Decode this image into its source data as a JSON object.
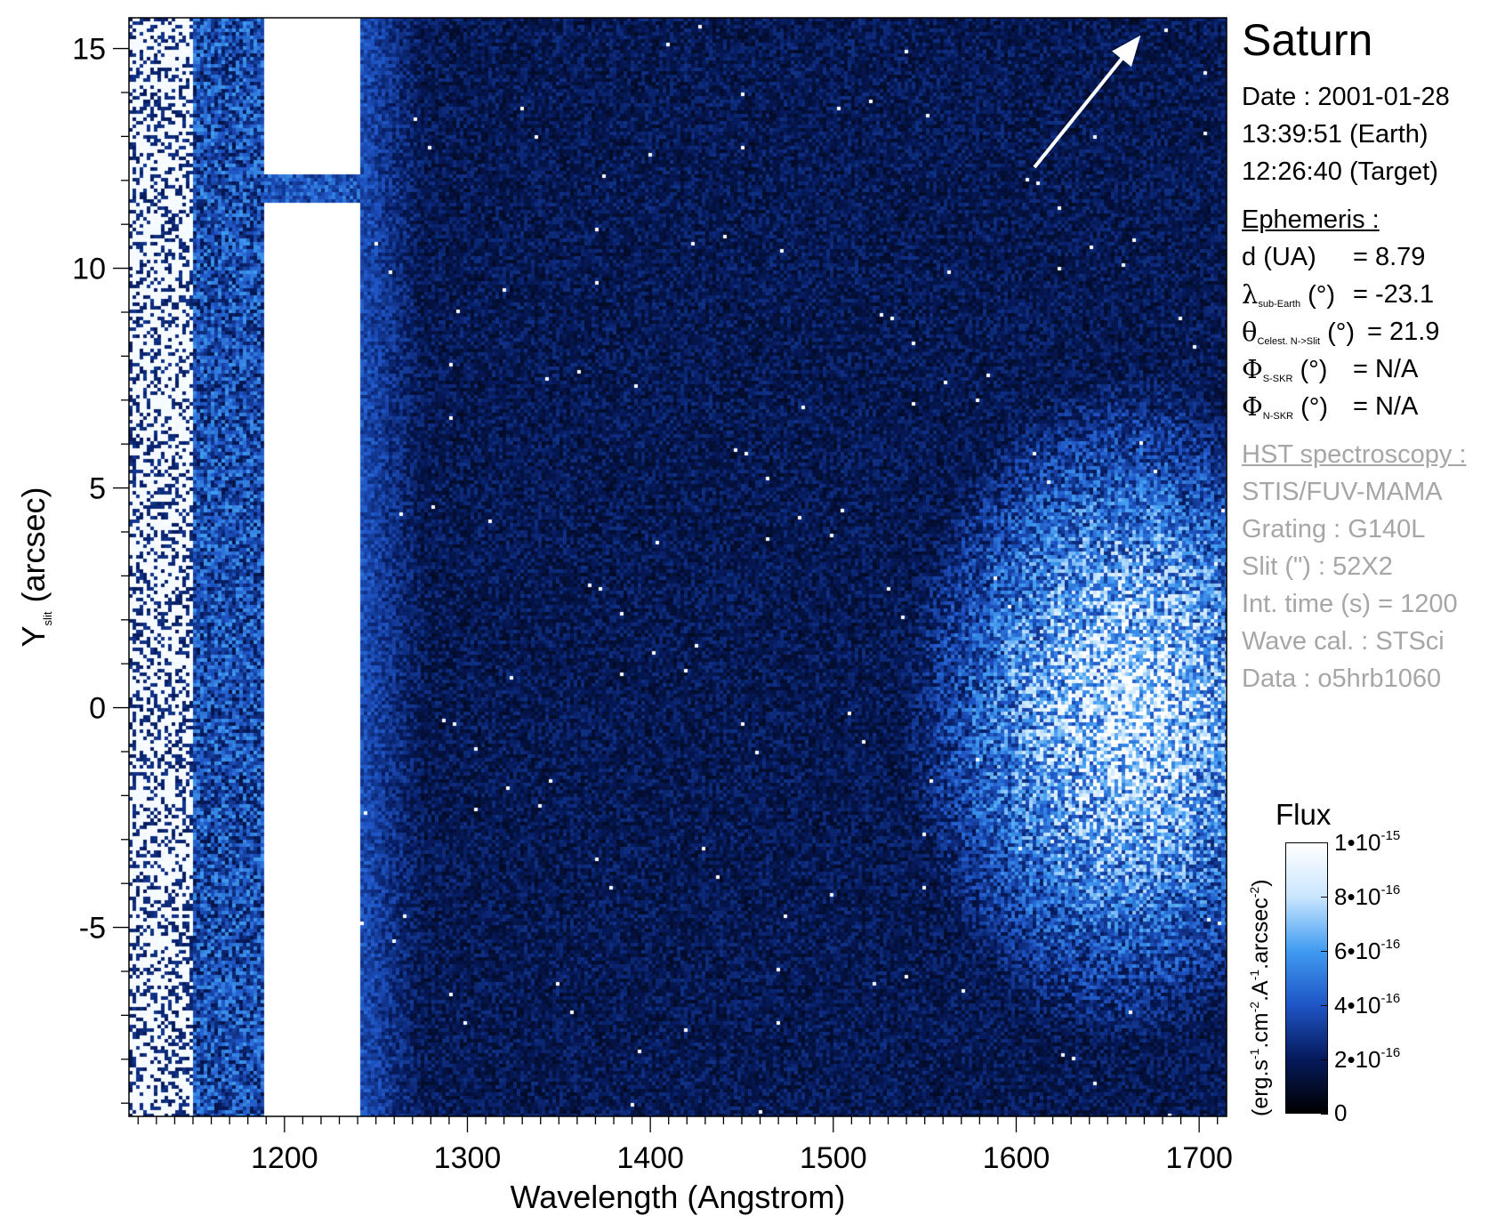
{
  "panel": {
    "title": "Saturn",
    "date_line": "Date : 2001-01-28",
    "earth_time": "13:39:51 (Earth)",
    "target_time": "12:26:40 (Target)",
    "ephemeris_heading": "Ephemeris :",
    "ephemeris": [
      {
        "symbol": "d",
        "subscript": "",
        "unit": "(UA)",
        "value": "= 8.79"
      },
      {
        "symbol": "λ",
        "subscript": "sub-Earth",
        "unit": "(°)",
        "value": "= -23.1"
      },
      {
        "symbol": "θ",
        "subscript": "Celest. N->Slit",
        "unit": "(°)",
        "value": "= 21.9"
      },
      {
        "symbol": "Φ",
        "subscript": "S-SKR",
        "unit": "(°)",
        "value": "= N/A"
      },
      {
        "symbol": "Φ",
        "subscript": "N-SKR",
        "unit": "(°)",
        "value": "= N/A"
      }
    ],
    "hst_heading": "HST spectroscopy :",
    "hst_lines": [
      "STIS/FUV-MAMA",
      "Grating : G140L",
      "Slit (\") : 52X2",
      "Int. time (s) = 1200",
      "Wave cal. : STSci",
      "Data : o5hrb1060"
    ]
  },
  "colorbar": {
    "title": "Flux",
    "unit_parts": [
      "(erg.s",
      "-1",
      ".cm",
      "-2",
      ".A",
      "-1",
      ".arcsec",
      "-2",
      ")"
    ],
    "ticks": [
      {
        "value": 1e-15,
        "mant": "1•10",
        "exp": "-15"
      },
      {
        "value": 8e-16,
        "mant": "8•10",
        "exp": "-16"
      },
      {
        "value": 6e-16,
        "mant": "6•10",
        "exp": "-16"
      },
      {
        "value": 4e-16,
        "mant": "4•10",
        "exp": "-16"
      },
      {
        "value": 2e-16,
        "mant": "2•10",
        "exp": "-16"
      },
      {
        "value": 0,
        "mant": "0",
        "exp": ""
      }
    ],
    "range": [
      0,
      1e-15
    ],
    "colors": [
      "#000000",
      "#061a5c",
      "#1f55c6",
      "#3f9bf0",
      "#c9e6ff",
      "#ffffff"
    ]
  },
  "chart_data": {
    "type": "heatmap",
    "xlabel": "Wavelength (Angstrom)",
    "ylabel_main": "Y",
    "ylabel_sub": "slit",
    "ylabel_unit": "(arcsec)",
    "xlim": [
      1115,
      1715
    ],
    "ylim": [
      -9.3,
      15.7
    ],
    "xticks": [
      1200,
      1300,
      1400,
      1500,
      1600,
      1700
    ],
    "yticks": [
      -5,
      0,
      5,
      10,
      15
    ],
    "x_minor_step": 10,
    "y_minor_step": 1,
    "features": {
      "lyman_alpha_saturated_band": {
        "x": [
          1188,
          1240
        ],
        "y_gap": [
          11.5,
          12.2
        ]
      },
      "bright_left_band": {
        "x": [
          1115,
          1150
        ]
      },
      "blue_halo_band": {
        "x": [
          1150,
          1188
        ]
      },
      "bright_right_region": {
        "x": [
          1540,
          1715
        ],
        "y": [
          -9.3,
          7.5
        ]
      }
    },
    "arrow": {
      "from": [
        1610,
        12.3
      ],
      "to": [
        1668,
        15.3
      ]
    }
  }
}
